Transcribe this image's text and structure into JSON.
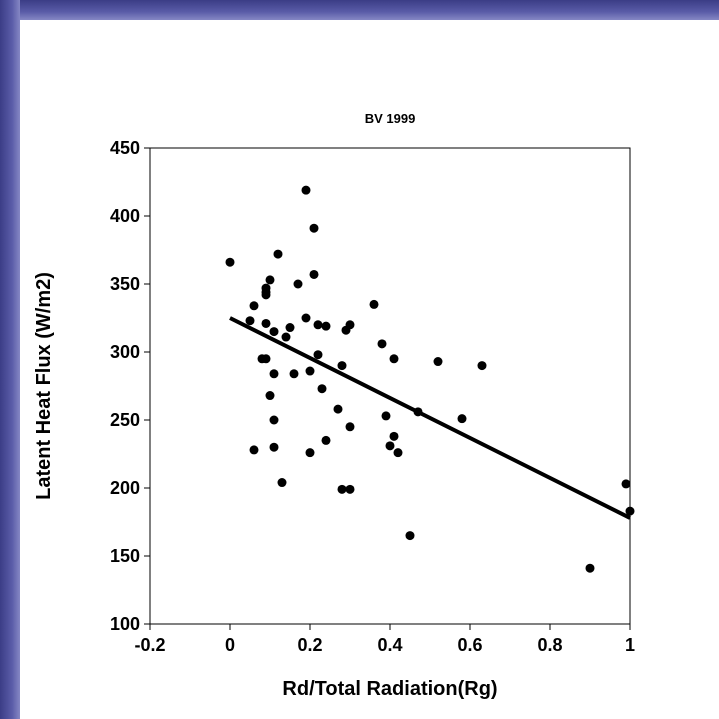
{
  "chart_data": {
    "type": "scatter",
    "title": "BV 1999",
    "xlabel": "Rd/Total Radiation(Rg)",
    "ylabel": "Latent Heat Flux (W/m2)",
    "xlim": [
      -0.2,
      1
    ],
    "ylim": [
      100,
      450
    ],
    "xticks": [
      -0.2,
      0,
      0.2,
      0.4,
      0.6,
      0.8,
      1
    ],
    "xtick_labels": [
      "-0.2",
      "0",
      "0.2",
      "0.4",
      "0.6",
      "0.8",
      "1"
    ],
    "yticks": [
      100,
      150,
      200,
      250,
      300,
      350,
      400,
      450
    ],
    "ytick_labels": [
      "100",
      "150",
      "200",
      "250",
      "300",
      "350",
      "400",
      "450"
    ],
    "grid": false,
    "series": [
      {
        "marker": "filled-circle",
        "color": "#000000",
        "points": [
          [
            0.0,
            366
          ],
          [
            0.06,
            334
          ],
          [
            0.05,
            323
          ],
          [
            0.06,
            228
          ],
          [
            0.09,
            347
          ],
          [
            0.09,
            344
          ],
          [
            0.09,
            342
          ],
          [
            0.1,
            353
          ],
          [
            0.09,
            321
          ],
          [
            0.11,
            315
          ],
          [
            0.08,
            295
          ],
          [
            0.09,
            295
          ],
          [
            0.1,
            268
          ],
          [
            0.11,
            284
          ],
          [
            0.12,
            372
          ],
          [
            0.11,
            250
          ],
          [
            0.11,
            230
          ],
          [
            0.13,
            204
          ],
          [
            0.14,
            311
          ],
          [
            0.15,
            318
          ],
          [
            0.16,
            284
          ],
          [
            0.17,
            350
          ],
          [
            0.19,
            325
          ],
          [
            0.19,
            419
          ],
          [
            0.2,
            286
          ],
          [
            0.21,
            391
          ],
          [
            0.21,
            357
          ],
          [
            0.22,
            320
          ],
          [
            0.22,
            298
          ],
          [
            0.23,
            273
          ],
          [
            0.24,
            319
          ],
          [
            0.24,
            235
          ],
          [
            0.2,
            226
          ],
          [
            0.27,
            258
          ],
          [
            0.28,
            290
          ],
          [
            0.28,
            199
          ],
          [
            0.29,
            316
          ],
          [
            0.3,
            320
          ],
          [
            0.3,
            199
          ],
          [
            0.3,
            245
          ],
          [
            0.36,
            335
          ],
          [
            0.38,
            306
          ],
          [
            0.39,
            253
          ],
          [
            0.4,
            231
          ],
          [
            0.41,
            238
          ],
          [
            0.41,
            295
          ],
          [
            0.42,
            226
          ],
          [
            0.45,
            165
          ],
          [
            0.47,
            256
          ],
          [
            0.52,
            293
          ],
          [
            0.58,
            251
          ],
          [
            0.63,
            290
          ],
          [
            0.9,
            141
          ],
          [
            0.99,
            203
          ],
          [
            1.0,
            183
          ]
        ]
      }
    ],
    "trendline": {
      "type": "linear",
      "x": [
        0,
        1
      ],
      "y": [
        325,
        178
      ],
      "color": "#000000"
    }
  }
}
